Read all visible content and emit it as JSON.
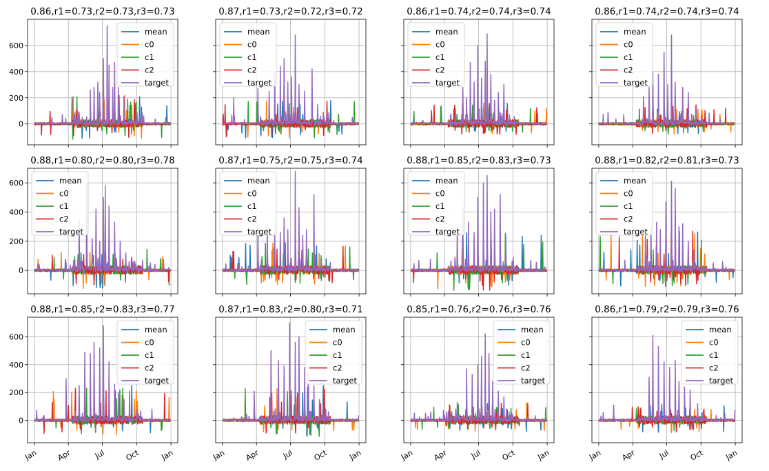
{
  "figure": {
    "colors": {
      "mean": "#1f77b4",
      "c0": "#ff7f0e",
      "c1": "#2ca02c",
      "c2": "#d62728",
      "target": "#9467bd",
      "grid": "#b0b0b0",
      "axes": "#000000"
    }
  },
  "chart_data": [
    {
      "type": "line",
      "title": "0.86,r1=0.73,r2=0.73,r3=0.73",
      "ylim": [
        -160,
        800
      ],
      "yticks": [
        0,
        200,
        400,
        600
      ],
      "xticks": [
        "Jan",
        "Apr",
        "Jul",
        "Oct",
        "Jan"
      ],
      "show_xticklabels": false,
      "show_yticklabels": true,
      "grid": true,
      "legend": "top-right",
      "series": [
        {
          "name": "mean"
        },
        {
          "name": "c0"
        },
        {
          "name": "c1"
        },
        {
          "name": "c2"
        },
        {
          "name": "target"
        }
      ],
      "target_peaks": [
        [
          75,
          70
        ],
        [
          120,
          90
        ],
        [
          150,
          260
        ],
        [
          160,
          280
        ],
        [
          170,
          320
        ],
        [
          175,
          240
        ],
        [
          185,
          500
        ],
        [
          195,
          750
        ],
        [
          200,
          450
        ],
        [
          210,
          280
        ],
        [
          215,
          470
        ],
        [
          225,
          280
        ],
        [
          240,
          210
        ],
        [
          260,
          60
        ],
        [
          275,
          90
        ]
      ],
      "pred_range": [
        -120,
        220
      ]
    },
    {
      "type": "line",
      "title": "0.87,r1=0.73,r2=0.72,r3=0.72",
      "ylim": [
        -160,
        800
      ],
      "yticks": [
        0,
        200,
        400,
        600
      ],
      "xticks": [
        "Jan",
        "Apr",
        "Jul",
        "Oct",
        "Jan"
      ],
      "show_xticklabels": false,
      "show_yticklabels": false,
      "grid": true,
      "legend": "top-left",
      "series": [
        {
          "name": "mean"
        },
        {
          "name": "c0"
        },
        {
          "name": "c1"
        },
        {
          "name": "c2"
        },
        {
          "name": "target"
        }
      ],
      "target_peaks": [
        [
          30,
          200
        ],
        [
          95,
          270
        ],
        [
          125,
          250
        ],
        [
          140,
          400
        ],
        [
          155,
          440
        ],
        [
          165,
          500
        ],
        [
          175,
          320
        ],
        [
          185,
          360
        ],
        [
          195,
          680
        ],
        [
          205,
          300
        ],
        [
          220,
          250
        ],
        [
          240,
          420
        ],
        [
          255,
          150
        ],
        [
          270,
          90
        ]
      ],
      "pred_range": [
        -110,
        180
      ]
    },
    {
      "type": "line",
      "title": "0.86,r1=0.74,r2=0.74,r3=0.74",
      "ylim": [
        -160,
        800
      ],
      "yticks": [
        0,
        200,
        400,
        600
      ],
      "xticks": [
        "Jan",
        "Apr",
        "Jul",
        "Oct",
        "Jan"
      ],
      "show_xticklabels": false,
      "show_yticklabels": false,
      "grid": true,
      "legend": "top-left",
      "series": [
        {
          "name": "mean"
        },
        {
          "name": "c0"
        },
        {
          "name": "c1"
        },
        {
          "name": "c2"
        },
        {
          "name": "target"
        }
      ],
      "target_peaks": [
        [
          120,
          120
        ],
        [
          140,
          280
        ],
        [
          150,
          200
        ],
        [
          160,
          470
        ],
        [
          170,
          320
        ],
        [
          180,
          600
        ],
        [
          190,
          350
        ],
        [
          200,
          480
        ],
        [
          205,
          690
        ],
        [
          215,
          380
        ],
        [
          225,
          180
        ],
        [
          235,
          240
        ],
        [
          250,
          300
        ],
        [
          265,
          70
        ]
      ],
      "pred_range": [
        -90,
        160
      ]
    },
    {
      "type": "line",
      "title": "0.86,r1=0.74,r2=0.74,r3=0.74",
      "ylim": [
        -160,
        800
      ],
      "yticks": [
        0,
        200,
        400,
        600
      ],
      "xticks": [
        "Jan",
        "Apr",
        "Jul",
        "Oct",
        "Jan"
      ],
      "show_xticklabels": false,
      "show_yticklabels": false,
      "grid": true,
      "legend": "top-left",
      "series": [
        {
          "name": "mean"
        },
        {
          "name": "c0"
        },
        {
          "name": "c1"
        },
        {
          "name": "c2"
        },
        {
          "name": "target"
        }
      ],
      "target_peaks": [
        [
          25,
          90
        ],
        [
          120,
          210
        ],
        [
          135,
          280
        ],
        [
          145,
          400
        ],
        [
          160,
          380
        ],
        [
          175,
          550
        ],
        [
          185,
          300
        ],
        [
          195,
          680
        ],
        [
          205,
          320
        ],
        [
          225,
          280
        ],
        [
          240,
          240
        ],
        [
          260,
          140
        ],
        [
          275,
          70
        ]
      ],
      "pred_range": [
        -80,
        150
      ]
    },
    {
      "type": "line",
      "title": "0.88,r1=0.80,r2=0.80,r3=0.78",
      "ylim": [
        -160,
        700
      ],
      "yticks": [
        0,
        200,
        400,
        600
      ],
      "xticks": [
        "Jan",
        "Apr",
        "Jul",
        "Oct",
        "Jan"
      ],
      "show_xticklabels": false,
      "show_yticklabels": true,
      "grid": true,
      "legend": "top-left",
      "series": [
        {
          "name": "mean"
        },
        {
          "name": "c0"
        },
        {
          "name": "c1"
        },
        {
          "name": "c2"
        },
        {
          "name": "target"
        }
      ],
      "target_peaks": [
        [
          120,
          350
        ],
        [
          140,
          600
        ],
        [
          155,
          220
        ],
        [
          165,
          420
        ],
        [
          175,
          200
        ],
        [
          185,
          500
        ],
        [
          190,
          580
        ],
        [
          200,
          440
        ],
        [
          215,
          330
        ],
        [
          230,
          200
        ],
        [
          245,
          120
        ],
        [
          265,
          60
        ]
      ],
      "pred_range": [
        -130,
        160
      ]
    },
    {
      "type": "line",
      "title": "0.87,r1=0.75,r2=0.75,r3=0.74",
      "ylim": [
        -160,
        700
      ],
      "yticks": [
        0,
        200,
        400,
        600
      ],
      "xticks": [
        "Jan",
        "Apr",
        "Jul",
        "Oct",
        "Jan"
      ],
      "show_xticklabels": false,
      "show_yticklabels": false,
      "grid": true,
      "legend": "top-left",
      "series": [
        {
          "name": "mean"
        },
        {
          "name": "c0"
        },
        {
          "name": "c1"
        },
        {
          "name": "c2"
        },
        {
          "name": "target"
        }
      ],
      "target_peaks": [
        [
          95,
          300
        ],
        [
          120,
          310
        ],
        [
          140,
          270
        ],
        [
          155,
          260
        ],
        [
          165,
          360
        ],
        [
          175,
          280
        ],
        [
          195,
          680
        ],
        [
          205,
          430
        ],
        [
          215,
          240
        ],
        [
          225,
          280
        ],
        [
          245,
          520
        ],
        [
          265,
          80
        ]
      ],
      "pred_range": [
        -100,
        190
      ]
    },
    {
      "type": "line",
      "title": "0.88,r1=0.85,r2=0.83,r3=0.73",
      "ylim": [
        -160,
        700
      ],
      "yticks": [
        0,
        200,
        400,
        600
      ],
      "xticks": [
        "Jan",
        "Apr",
        "Jul",
        "Oct",
        "Jan"
      ],
      "show_xticklabels": false,
      "show_yticklabels": false,
      "grid": true,
      "legend": "top-left",
      "series": [
        {
          "name": "mean"
        },
        {
          "name": "c0"
        },
        {
          "name": "c1"
        },
        {
          "name": "c2"
        },
        {
          "name": "target"
        }
      ],
      "target_peaks": [
        [
          125,
          300
        ],
        [
          140,
          430
        ],
        [
          155,
          330
        ],
        [
          170,
          260
        ],
        [
          180,
          500
        ],
        [
          195,
          600
        ],
        [
          205,
          650
        ],
        [
          215,
          400
        ],
        [
          225,
          420
        ],
        [
          240,
          520
        ],
        [
          255,
          240
        ],
        [
          275,
          90
        ]
      ],
      "pred_range": [
        -140,
        280
      ]
    },
    {
      "type": "line",
      "title": "0.88,r1=0.82,r2=0.81,r3=0.73",
      "ylim": [
        -160,
        700
      ],
      "yticks": [
        0,
        200,
        400,
        600
      ],
      "xticks": [
        "Jan",
        "Apr",
        "Jul",
        "Oct",
        "Jan"
      ],
      "show_xticklabels": false,
      "show_yticklabels": false,
      "grid": true,
      "legend": "top-left",
      "series": [
        {
          "name": "mean"
        },
        {
          "name": "c0"
        },
        {
          "name": "c1"
        },
        {
          "name": "c2"
        },
        {
          "name": "target"
        }
      ],
      "target_peaks": [
        [
          125,
          240
        ],
        [
          140,
          300
        ],
        [
          155,
          330
        ],
        [
          165,
          280
        ],
        [
          180,
          470
        ],
        [
          195,
          610
        ],
        [
          205,
          560
        ],
        [
          215,
          300
        ],
        [
          225,
          320
        ],
        [
          240,
          200
        ],
        [
          255,
          140
        ],
        [
          275,
          80
        ]
      ],
      "pred_range": [
        -110,
        270
      ]
    },
    {
      "type": "line",
      "title": "0.88,r1=0.85,r2=0.83,r3=0.77",
      "ylim": [
        -160,
        740
      ],
      "yticks": [
        0,
        200,
        400,
        600
      ],
      "xticks": [
        "Jan",
        "Apr",
        "Jul",
        "Oct",
        "Jan"
      ],
      "show_xticklabels": true,
      "show_yticklabels": true,
      "grid": true,
      "legend": "top-right",
      "series": [
        {
          "name": "mean"
        },
        {
          "name": "c0"
        },
        {
          "name": "c1"
        },
        {
          "name": "c2"
        },
        {
          "name": "target"
        }
      ],
      "target_peaks": [
        [
          85,
          300
        ],
        [
          120,
          250
        ],
        [
          135,
          490
        ],
        [
          150,
          480
        ],
        [
          160,
          560
        ],
        [
          175,
          520
        ],
        [
          185,
          680
        ],
        [
          200,
          420
        ],
        [
          215,
          260
        ],
        [
          225,
          200
        ],
        [
          240,
          150
        ],
        [
          255,
          210
        ],
        [
          275,
          80
        ]
      ],
      "pred_range": [
        -110,
        260
      ]
    },
    {
      "type": "line",
      "title": "0.87,r1=0.83,r2=0.80,r3=0.71",
      "ylim": [
        -160,
        740
      ],
      "yticks": [
        0,
        200,
        400,
        600
      ],
      "xticks": [
        "Jan",
        "Apr",
        "Jul",
        "Oct",
        "Jan"
      ],
      "show_xticklabels": true,
      "show_yticklabels": false,
      "grid": true,
      "legend": "top-right",
      "series": [
        {
          "name": "mean"
        },
        {
          "name": "c0"
        },
        {
          "name": "c1"
        },
        {
          "name": "c2"
        },
        {
          "name": "target"
        }
      ],
      "target_peaks": [
        [
          85,
          210
        ],
        [
          130,
          500
        ],
        [
          150,
          430
        ],
        [
          165,
          390
        ],
        [
          180,
          700
        ],
        [
          195,
          560
        ],
        [
          205,
          600
        ],
        [
          220,
          380
        ],
        [
          230,
          330
        ],
        [
          245,
          250
        ],
        [
          260,
          150
        ],
        [
          275,
          90
        ]
      ],
      "pred_range": [
        -120,
        260
      ]
    },
    {
      "type": "line",
      "title": "0.85,r1=0.76,r2=0.76,r3=0.76",
      "ylim": [
        -160,
        740
      ],
      "yticks": [
        0,
        200,
        400,
        600
      ],
      "xticks": [
        "Jan",
        "Apr",
        "Jul",
        "Oct",
        "Jan"
      ],
      "show_xticklabels": true,
      "show_yticklabels": false,
      "grid": true,
      "legend": "top-right",
      "series": [
        {
          "name": "mean"
        },
        {
          "name": "c0"
        },
        {
          "name": "c1"
        },
        {
          "name": "c2"
        },
        {
          "name": "target"
        }
      ],
      "target_peaks": [
        [
          40,
          50
        ],
        [
          125,
          130
        ],
        [
          150,
          370
        ],
        [
          165,
          330
        ],
        [
          180,
          400
        ],
        [
          190,
          460
        ],
        [
          200,
          620
        ],
        [
          210,
          480
        ],
        [
          220,
          280
        ],
        [
          235,
          210
        ],
        [
          250,
          170
        ],
        [
          270,
          60
        ]
      ],
      "pred_range": [
        -80,
        130
      ]
    },
    {
      "type": "line",
      "title": "0.86,r1=0.79,r2=0.79,r3=0.76",
      "ylim": [
        -160,
        740
      ],
      "yticks": [
        0,
        200,
        400,
        600
      ],
      "xticks": [
        "Jan",
        "Apr",
        "Jul",
        "Oct",
        "Jan"
      ],
      "show_xticklabels": true,
      "show_yticklabels": false,
      "grid": true,
      "legend": "top-right",
      "series": [
        {
          "name": "mean"
        },
        {
          "name": "c0"
        },
        {
          "name": "c1"
        },
        {
          "name": "c2"
        },
        {
          "name": "target"
        }
      ],
      "target_peaks": [
        [
          40,
          110
        ],
        [
          135,
          310
        ],
        [
          145,
          610
        ],
        [
          160,
          530
        ],
        [
          175,
          420
        ],
        [
          190,
          380
        ],
        [
          205,
          430
        ],
        [
          215,
          280
        ],
        [
          230,
          240
        ],
        [
          245,
          220
        ],
        [
          265,
          120
        ],
        [
          280,
          60
        ]
      ],
      "pred_range": [
        -90,
        120
      ]
    }
  ]
}
